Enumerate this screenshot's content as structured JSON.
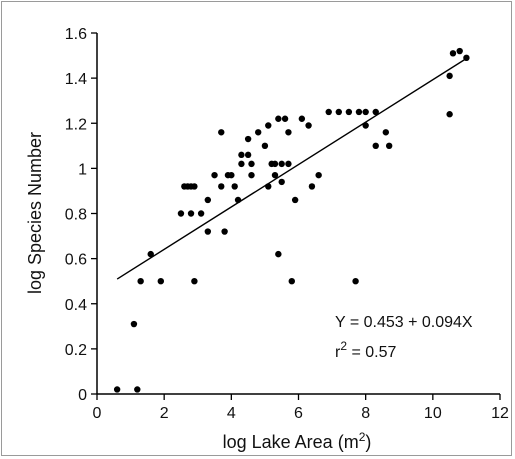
{
  "chart_data": {
    "type": "scatter",
    "title": "",
    "xlabel": "log Lake Area (m",
    "xlabel_sup": "2",
    "xlabel_close": ")",
    "ylabel": "log Species Number",
    "xlim": [
      0,
      12
    ],
    "ylim": [
      0,
      1.6
    ],
    "xticks": [
      0,
      2,
      4,
      6,
      8,
      10,
      12
    ],
    "yticks": [
      0,
      0.2,
      0.4,
      0.6,
      0.8,
      1,
      1.2,
      1.4,
      1.6
    ],
    "xtick_labels": [
      "0",
      "2",
      "4",
      "6",
      "8",
      "10",
      "12"
    ],
    "ytick_labels": [
      "0",
      "0.2",
      "0.4",
      "0.6",
      "0.8",
      "1",
      "1.2",
      "1.4",
      "1.6"
    ],
    "grid": false,
    "regression": {
      "intercept": 0.453,
      "slope": 0.094,
      "x_range": [
        0.6,
        11.0
      ]
    },
    "annotations": {
      "equation": "Y = 0.453 + 0.094X",
      "r2_prefix": "r",
      "r2_sup": "2",
      "r2_value": " = 0.57"
    },
    "colors": {
      "points": "#000000",
      "line": "#000000",
      "axes": "#000000"
    },
    "points": [
      {
        "x": 0.6,
        "y": 0.02
      },
      {
        "x": 1.2,
        "y": 0.02
      },
      {
        "x": 1.1,
        "y": 0.31
      },
      {
        "x": 1.3,
        "y": 0.5
      },
      {
        "x": 1.6,
        "y": 0.62
      },
      {
        "x": 1.9,
        "y": 0.5
      },
      {
        "x": 2.5,
        "y": 0.8
      },
      {
        "x": 2.6,
        "y": 0.92
      },
      {
        "x": 2.7,
        "y": 0.92
      },
      {
        "x": 2.8,
        "y": 0.92
      },
      {
        "x": 2.9,
        "y": 0.92
      },
      {
        "x": 2.8,
        "y": 0.8
      },
      {
        "x": 2.9,
        "y": 0.5
      },
      {
        "x": 3.1,
        "y": 0.8
      },
      {
        "x": 3.3,
        "y": 0.72
      },
      {
        "x": 3.3,
        "y": 0.86
      },
      {
        "x": 3.5,
        "y": 0.97
      },
      {
        "x": 3.7,
        "y": 1.16
      },
      {
        "x": 3.7,
        "y": 0.92
      },
      {
        "x": 3.8,
        "y": 0.72
      },
      {
        "x": 3.9,
        "y": 0.97
      },
      {
        "x": 4.0,
        "y": 0.97
      },
      {
        "x": 4.1,
        "y": 0.92
      },
      {
        "x": 4.2,
        "y": 0.86
      },
      {
        "x": 4.3,
        "y": 1.02
      },
      {
        "x": 4.3,
        "y": 1.06
      },
      {
        "x": 4.5,
        "y": 1.06
      },
      {
        "x": 4.5,
        "y": 1.13
      },
      {
        "x": 4.6,
        "y": 1.02
      },
      {
        "x": 4.6,
        "y": 0.97
      },
      {
        "x": 4.8,
        "y": 1.16
      },
      {
        "x": 5.0,
        "y": 1.1
      },
      {
        "x": 5.1,
        "y": 1.19
      },
      {
        "x": 5.1,
        "y": 0.92
      },
      {
        "x": 5.2,
        "y": 1.02
      },
      {
        "x": 5.3,
        "y": 0.97
      },
      {
        "x": 5.3,
        "y": 1.02
      },
      {
        "x": 5.4,
        "y": 1.22
      },
      {
        "x": 5.4,
        "y": 0.62
      },
      {
        "x": 5.5,
        "y": 1.02
      },
      {
        "x": 5.5,
        "y": 0.94
      },
      {
        "x": 5.6,
        "y": 1.22
      },
      {
        "x": 5.7,
        "y": 1.02
      },
      {
        "x": 5.7,
        "y": 1.16
      },
      {
        "x": 5.8,
        "y": 0.5
      },
      {
        "x": 5.9,
        "y": 0.86
      },
      {
        "x": 6.1,
        "y": 1.22
      },
      {
        "x": 6.3,
        "y": 1.19
      },
      {
        "x": 6.4,
        "y": 0.92
      },
      {
        "x": 6.6,
        "y": 0.97
      },
      {
        "x": 6.9,
        "y": 1.25
      },
      {
        "x": 7.2,
        "y": 1.25
      },
      {
        "x": 7.5,
        "y": 1.25
      },
      {
        "x": 7.7,
        "y": 0.5
      },
      {
        "x": 7.8,
        "y": 1.25
      },
      {
        "x": 8.0,
        "y": 1.25
      },
      {
        "x": 8.0,
        "y": 1.19
      },
      {
        "x": 8.3,
        "y": 1.25
      },
      {
        "x": 8.3,
        "y": 1.1
      },
      {
        "x": 8.6,
        "y": 1.16
      },
      {
        "x": 8.7,
        "y": 1.1
      },
      {
        "x": 10.5,
        "y": 1.41
      },
      {
        "x": 10.5,
        "y": 1.24
      },
      {
        "x": 10.6,
        "y": 1.51
      },
      {
        "x": 10.8,
        "y": 1.52
      },
      {
        "x": 11.0,
        "y": 1.49
      }
    ]
  }
}
